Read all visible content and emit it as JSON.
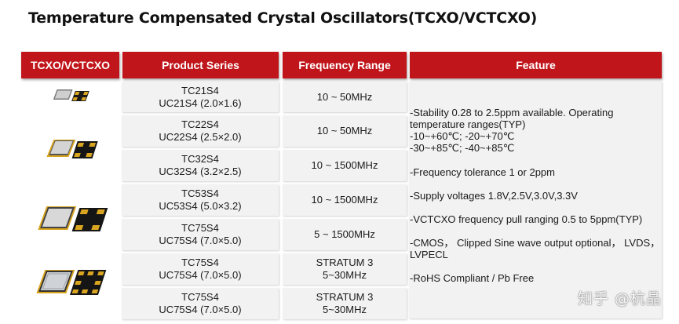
{
  "title": "Temperature Compensated Crystal Oscillators(TCXO/VCTCXO)",
  "headers": {
    "image": "TCXO/VCTCXO",
    "series": "Product Series",
    "frequency": "Frequency Range",
    "feature": "Feature"
  },
  "rows": [
    {
      "series_1": "TC21S4",
      "series_2": "UC21S4  (2.0×1.6)",
      "freq_1": "10 ~ 50MHz",
      "freq_2": ""
    },
    {
      "series_1": "TC22S4",
      "series_2": "UC22S4  (2.5×2.0)",
      "freq_1": "10 ~ 50MHz",
      "freq_2": ""
    },
    {
      "series_1": "TC32S4",
      "series_2": "UC32S4  (3.2×2.5)",
      "freq_1": "10 ~ 1500MHz",
      "freq_2": ""
    },
    {
      "series_1": "TC53S4",
      "series_2": "UC53S4   (5.0×3.2)",
      "freq_1": "10 ~ 1500MHz",
      "freq_2": ""
    },
    {
      "series_1": "TC75S4",
      "series_2": "UC75S4  (7.0×5.0)",
      "freq_1": "5 ~ 1500MHz",
      "freq_2": ""
    },
    {
      "series_1": "TC75S4",
      "series_2": "UC75S4  (7.0×5.0)",
      "freq_1": "STRATUM 3",
      "freq_2": "5~30MHz"
    },
    {
      "series_1": "TC75S4",
      "series_2": "UC75S4  (7.0×5.0)",
      "freq_1": "STRATUM 3",
      "freq_2": "5~30MHz"
    }
  ],
  "features": {
    "stability_1": "-Stability 0.28 to 2.5ppm available.  Operating",
    "stability_2": "temperature ranges(TYP)",
    "stability_3": " -10~+60℃;  -20~+70℃",
    "stability_4": " -30~+85℃;  -40~+85℃",
    "tolerance": "-Frequency tolerance 1 or 2ppm",
    "voltage": "-Supply voltages 1.8V,2.5V,3.0V,3.3V",
    "pull": "-VCTCXO frequency pull ranging 0.5 to 5ppm(TYP)",
    "output_1": "-CMOS， Clipped Sine wave output optional， LVDS，",
    "output_2": "LVPECL",
    "rohs": "-RoHS Compliant / Pb Free"
  },
  "watermark": "知乎 @杭晶",
  "colors": {
    "header_red": "#c0151a",
    "cell_gray": "#f2f2f2",
    "chip_metal": "#c9c9c9",
    "chip_gold": "#d9a520",
    "chip_black": "#1a1a1a"
  },
  "icons": [
    "tcxo-chip-icon-small",
    "tcxo-chip-icon-medium",
    "tcxo-chip-icon-large",
    "tcxo-chip-icon-xlarge"
  ]
}
